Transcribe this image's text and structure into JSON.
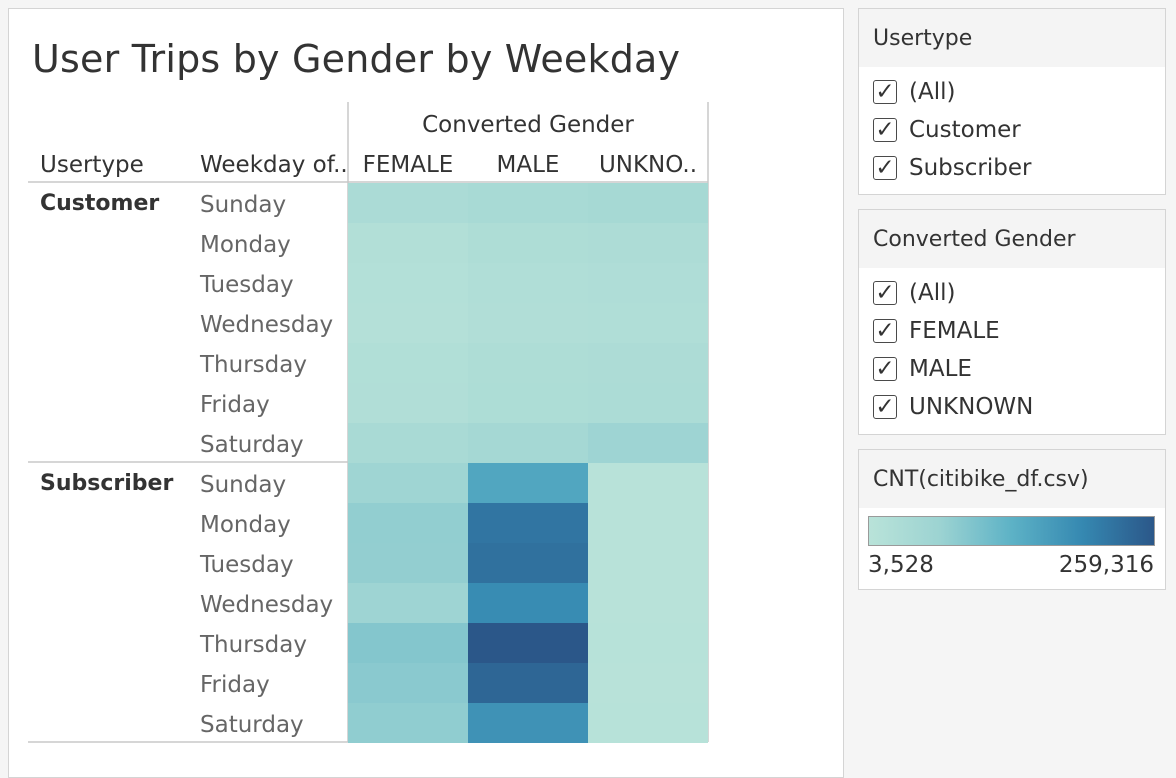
{
  "title": "User Trips by Gender by Weekday",
  "chart_data": {
    "type": "heatmap",
    "title": "User Trips by Gender by Weekday",
    "column_header": "Converted Gender",
    "row_headers": [
      "Usertype",
      "Weekday of.."
    ],
    "columns": [
      "FEMALE",
      "MALE",
      "UNKNO.."
    ],
    "groups": [
      {
        "name": "Customer",
        "rows": [
          "Sunday",
          "Monday",
          "Tuesday",
          "Wednesday",
          "Thursday",
          "Friday",
          "Saturday"
        ],
        "values": [
          [
            35000,
            40000,
            45000
          ],
          [
            20000,
            27000,
            30000
          ],
          [
            17000,
            24000,
            26000
          ],
          [
            15000,
            22000,
            24000
          ],
          [
            21000,
            28000,
            31000
          ],
          [
            22000,
            29000,
            33000
          ],
          [
            38000,
            48000,
            62000
          ]
        ]
      },
      {
        "name": "Subscriber",
        "rows": [
          "Sunday",
          "Monday",
          "Tuesday",
          "Wednesday",
          "Thursday",
          "Friday",
          "Saturday"
        ],
        "values": [
          [
            60000,
            150000,
            6000
          ],
          [
            78000,
            220000,
            6500
          ],
          [
            77000,
            225000,
            6500
          ],
          [
            62000,
            190000,
            6200
          ],
          [
            92000,
            259316,
            7000
          ],
          [
            86000,
            240000,
            6800
          ],
          [
            80000,
            180000,
            7000
          ]
        ]
      }
    ],
    "color_range": [
      3528,
      259316
    ],
    "color_stops": [
      "#b9e3d9",
      "#9cd3d2",
      "#5db2c6",
      "#3588b1",
      "#2b5789"
    ]
  },
  "filters": [
    {
      "title": "Usertype",
      "items": [
        {
          "label": "(All)",
          "checked": true
        },
        {
          "label": "Customer",
          "checked": true
        },
        {
          "label": "Subscriber",
          "checked": true
        }
      ]
    },
    {
      "title": "Converted Gender",
      "items": [
        {
          "label": "(All)",
          "checked": true
        },
        {
          "label": "FEMALE",
          "checked": true
        },
        {
          "label": "MALE",
          "checked": true
        },
        {
          "label": "UNKNOWN",
          "checked": true
        }
      ]
    }
  ],
  "legend": {
    "title": "CNT(citibike_df.csv)",
    "min_label": "3,528",
    "max_label": "259,316"
  }
}
